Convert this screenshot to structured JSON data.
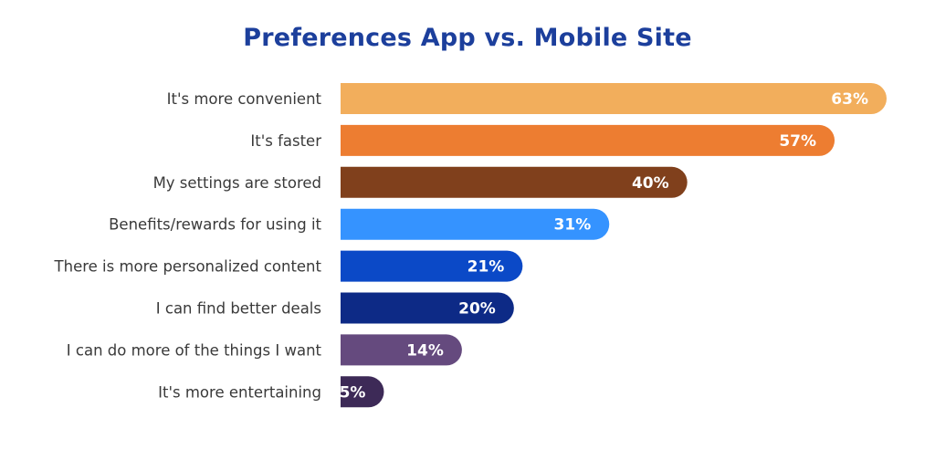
{
  "chart_data": {
    "type": "bar",
    "orientation": "horizontal",
    "title": "Preferences App vs. Mobile Site",
    "xlabel": "",
    "ylabel": "",
    "grid": false,
    "legend": "none",
    "xlim": [
      0,
      63
    ],
    "categories": [
      "It's more convenient",
      "It's faster",
      "My settings are stored",
      "Benefits/rewards for using it",
      "There is more personalized content",
      "I can find better deals",
      "I can do more of the things I want",
      "It's more entertaining"
    ],
    "values": [
      63,
      57,
      40,
      31,
      21,
      20,
      14,
      5
    ],
    "value_labels": [
      "63%",
      "57%",
      "40%",
      "31%",
      "21%",
      "20%",
      "14%",
      "5%"
    ],
    "colors": [
      "#f2ae5c",
      "#ed7d31",
      "#80401c",
      "#3593ff",
      "#0b49c7",
      "#0d2a86",
      "#654a7e",
      "#3d2a57"
    ]
  }
}
